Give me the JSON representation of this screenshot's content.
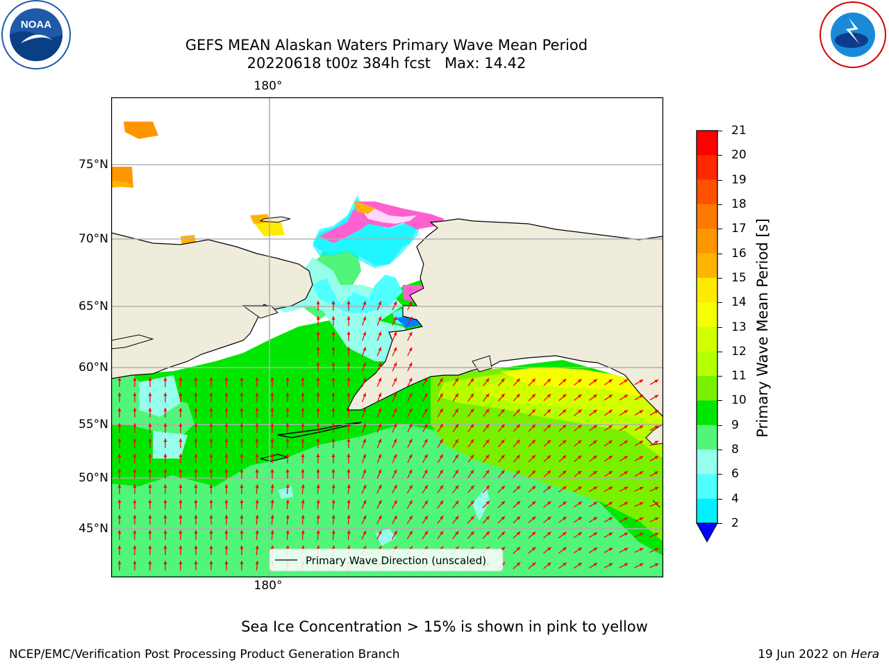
{
  "title_line1": "GEFS MEAN Alaskan Waters Primary Wave Mean Period",
  "title_line2": "20220618 t00z 384h fcst   Max: 14.42",
  "logos": {
    "left": "noaa-logo",
    "right": "nws-logo"
  },
  "map": {
    "lon_label": "180°",
    "lat_labels": [
      "75°N",
      "70°N",
      "65°N",
      "60°N",
      "55°N",
      "50°N",
      "45°N"
    ],
    "legend_label": "Primary Wave Direction (unscaled)",
    "colors": {
      "land": "#efecdc",
      "grid": "#b0b0b0",
      "arrow": "#ff0000"
    }
  },
  "colorbar": {
    "label": "Primary Wave Mean Period [s]",
    "ticks": [
      "21",
      "20",
      "19",
      "18",
      "17",
      "16",
      "15",
      "14",
      "13",
      "12",
      "11",
      "10",
      "9",
      "8",
      "6",
      "4",
      "2"
    ],
    "colors": [
      "#ff0000",
      "#ff2800",
      "#ff5000",
      "#ff7800",
      "#ff9600",
      "#ffb400",
      "#ffeb00",
      "#f5ff00",
      "#d2ff00",
      "#b4ff00",
      "#78f000",
      "#00e600",
      "#50f57a",
      "#96ffeb",
      "#50ffff",
      "#00f0ff",
      "#0080ff"
    ],
    "extend_color": "#0000ff"
  },
  "note": "Sea Ice Concentration > 15% is shown in pink to yellow",
  "footer": {
    "left": "NCEP/EMC/Verification Post Processing Product Generation Branch",
    "date": "19 Jun 2022 on ",
    "host": "Hera"
  }
}
